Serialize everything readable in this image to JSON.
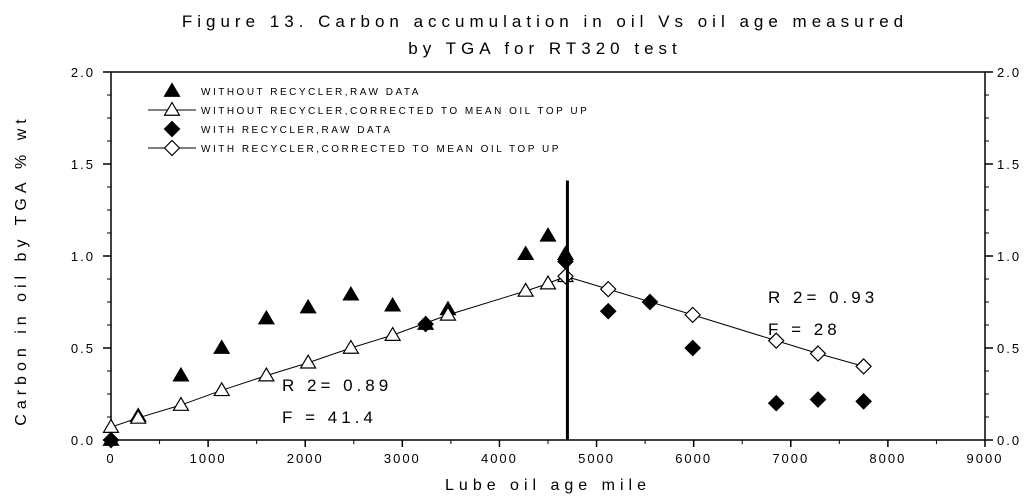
{
  "chart_data": {
    "type": "scatter",
    "title_line1": "Figure 13. Carbon accumulation in oil Vs oil age measured",
    "title_line2": "by TGA for RT320 test",
    "xlabel": "Lube oil age mile",
    "ylabel": "Carbon in oil by TGA % wt",
    "xlim": [
      0,
      9000
    ],
    "ylim": [
      0,
      2.0
    ],
    "x_ticks": [
      "0",
      "1000",
      "2000",
      "3000",
      "4000",
      "5000",
      "6000",
      "7000",
      "8000",
      "9000"
    ],
    "y_ticks": [
      "0.0",
      "0.5",
      "1.0",
      "1.5",
      "2.0"
    ],
    "y_ticks_right": [
      "0.0",
      "0.5",
      "1.0",
      "1.5",
      "2.0"
    ],
    "legend_position": "top-left",
    "series": [
      {
        "name": "WITHOUT RECYCLER,RAW DATA",
        "marker": "triangle-filled",
        "line": false,
        "x": [
          0,
          280,
          720,
          1140,
          1600,
          2030,
          2470,
          2900,
          3240,
          3470,
          4270,
          4500,
          4680
        ],
        "y": [
          0.0,
          0.13,
          0.35,
          0.5,
          0.66,
          0.72,
          0.79,
          0.73,
          0.63,
          0.71,
          1.01,
          1.11,
          1.01
        ]
      },
      {
        "name": "WITHOUT RECYCLER,CORRECTED TO MEAN OIL TOP UP",
        "marker": "triangle-open",
        "line": true,
        "x": [
          0,
          280,
          720,
          1140,
          1600,
          2030,
          2470,
          2900,
          3470,
          4270,
          4500,
          4680
        ],
        "y": [
          0.07,
          0.12,
          0.19,
          0.27,
          0.35,
          0.42,
          0.5,
          0.57,
          0.68,
          0.81,
          0.85,
          0.89
        ]
      },
      {
        "name": "WITH RECYCLER,RAW DATA",
        "marker": "diamond-filled",
        "line": false,
        "x": [
          0,
          3240,
          4680,
          5120,
          5550,
          5990,
          6850,
          7280,
          7750
        ],
        "y": [
          0.0,
          0.63,
          0.97,
          0.7,
          0.75,
          0.5,
          0.2,
          0.22,
          0.21
        ]
      },
      {
        "name": "WITH RECYCLER,CORRECTED TO MEAN OIL TOP UP",
        "marker": "diamond-open",
        "line": true,
        "x": [
          4680,
          5120,
          5990,
          6850,
          7280,
          7750
        ],
        "y": [
          0.89,
          0.82,
          0.68,
          0.54,
          0.47,
          0.4
        ]
      }
    ],
    "vertical_line_x": 4700,
    "vertical_line_y_top": 1.41,
    "annotations": [
      {
        "R2": "R 2= 0.89",
        "F": "F = 41.4"
      },
      {
        "R2": "R 2= 0.93",
        "F": "F = 28"
      }
    ]
  }
}
